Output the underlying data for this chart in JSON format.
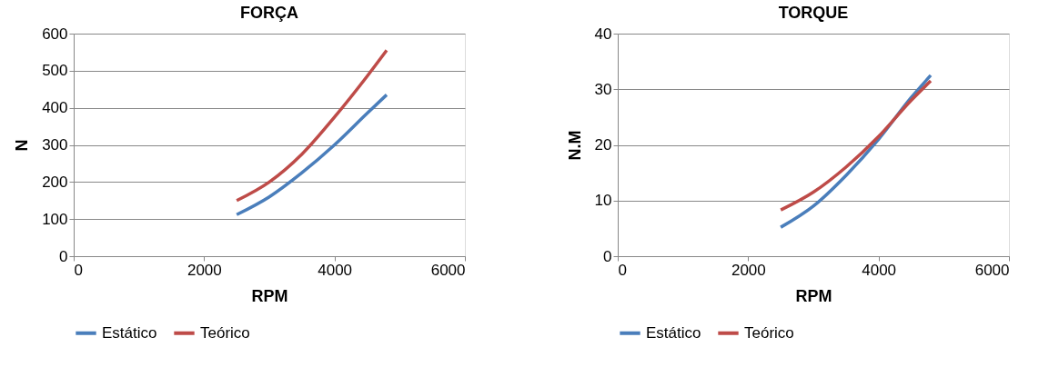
{
  "chart_data": [
    {
      "type": "line",
      "title": "FORÇA",
      "xlabel": "RPM",
      "ylabel": "N",
      "x": [
        2500,
        3000,
        3500,
        4000,
        4500,
        4800
      ],
      "series": [
        {
          "name": "Estático",
          "color": "#4a7ebb",
          "values": [
            112,
            160,
            225,
            300,
            385,
            435
          ]
        },
        {
          "name": "Teórico",
          "color": "#be4b48",
          "values": [
            150,
            200,
            275,
            375,
            485,
            555
          ]
        }
      ],
      "xlim": [
        0,
        6000
      ],
      "xticks": [
        0,
        2000,
        4000,
        6000
      ],
      "ylim": [
        0,
        600
      ],
      "yticks": [
        0,
        100,
        200,
        300,
        400,
        500,
        600
      ],
      "grid": "y",
      "legend": "bottom",
      "marker": "none",
      "line_style": "solid"
    },
    {
      "type": "line",
      "title": "TORQUE",
      "xlabel": "RPM",
      "ylabel": "N.M",
      "x": [
        2500,
        3000,
        3500,
        4000,
        4500,
        4800
      ],
      "series": [
        {
          "name": "Estático",
          "color": "#4a7ebb",
          "values": [
            5.2,
            9,
            14.5,
            21,
            28.5,
            32.5
          ]
        },
        {
          "name": "Teórico",
          "color": "#be4b48",
          "values": [
            8.3,
            11.5,
            16,
            21.5,
            28,
            31.5
          ]
        }
      ],
      "xlim": [
        0,
        6000
      ],
      "xticks": [
        0,
        2000,
        4000,
        6000
      ],
      "ylim": [
        0,
        40
      ],
      "yticks": [
        0,
        10,
        20,
        30,
        40
      ],
      "grid": "y",
      "legend": "bottom",
      "marker": "none",
      "line_style": "solid"
    }
  ]
}
